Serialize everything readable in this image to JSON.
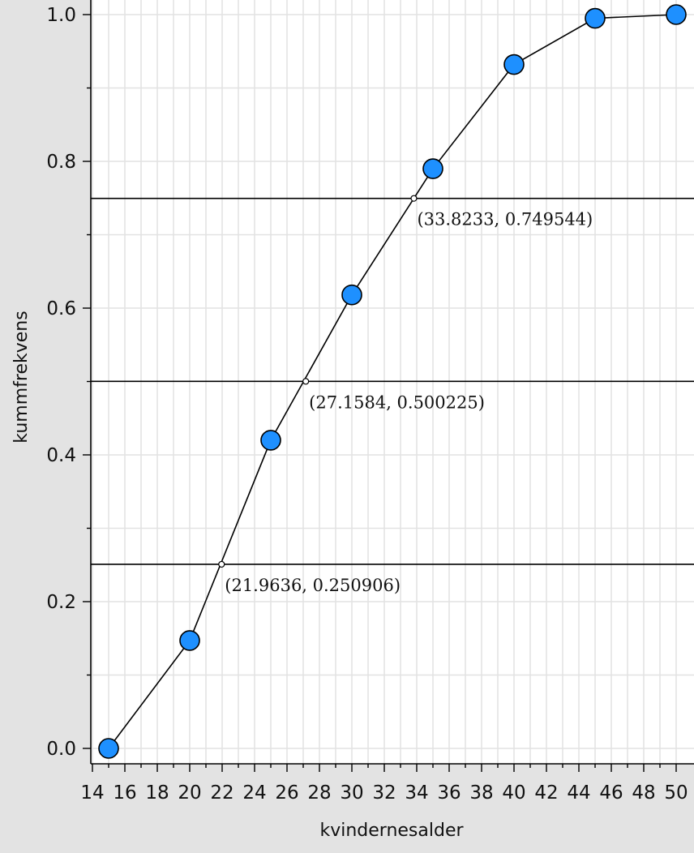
{
  "chart_data": {
    "type": "line",
    "xlabel": "kvindernesalder",
    "ylabel": "kummfrekvens",
    "xlim": [
      14,
      50
    ],
    "ylim": [
      0.0,
      1.0
    ],
    "x_ticks": [
      14,
      16,
      18,
      20,
      22,
      24,
      26,
      28,
      30,
      32,
      34,
      36,
      38,
      40,
      42,
      44,
      46,
      48,
      50
    ],
    "y_ticks": [
      0.0,
      0.2,
      0.4,
      0.6,
      0.8,
      1.0
    ],
    "y_tick_labels": [
      "0.0",
      "0.2",
      "0.4",
      "0.6",
      "0.8",
      "1.0"
    ],
    "grid": true,
    "series": [
      {
        "x": [
          15,
          20,
          25,
          30,
          35,
          40,
          45,
          50
        ],
        "y": [
          0.0,
          0.147,
          0.42,
          0.618,
          0.79,
          0.932,
          0.995,
          1.0
        ],
        "marker_color": "#1e90ff"
      }
    ],
    "horizontal_lines": [
      0.250906,
      0.500225,
      0.749544
    ],
    "annotations": [
      {
        "x": 21.9636,
        "y": 0.250906,
        "text": "(21.9636, 0.250906)"
      },
      {
        "x": 27.1584,
        "y": 0.500225,
        "text": "(27.1584, 0.500225)"
      },
      {
        "x": 33.8233,
        "y": 0.749544,
        "text": "(33.8233, 0.749544)"
      }
    ]
  }
}
